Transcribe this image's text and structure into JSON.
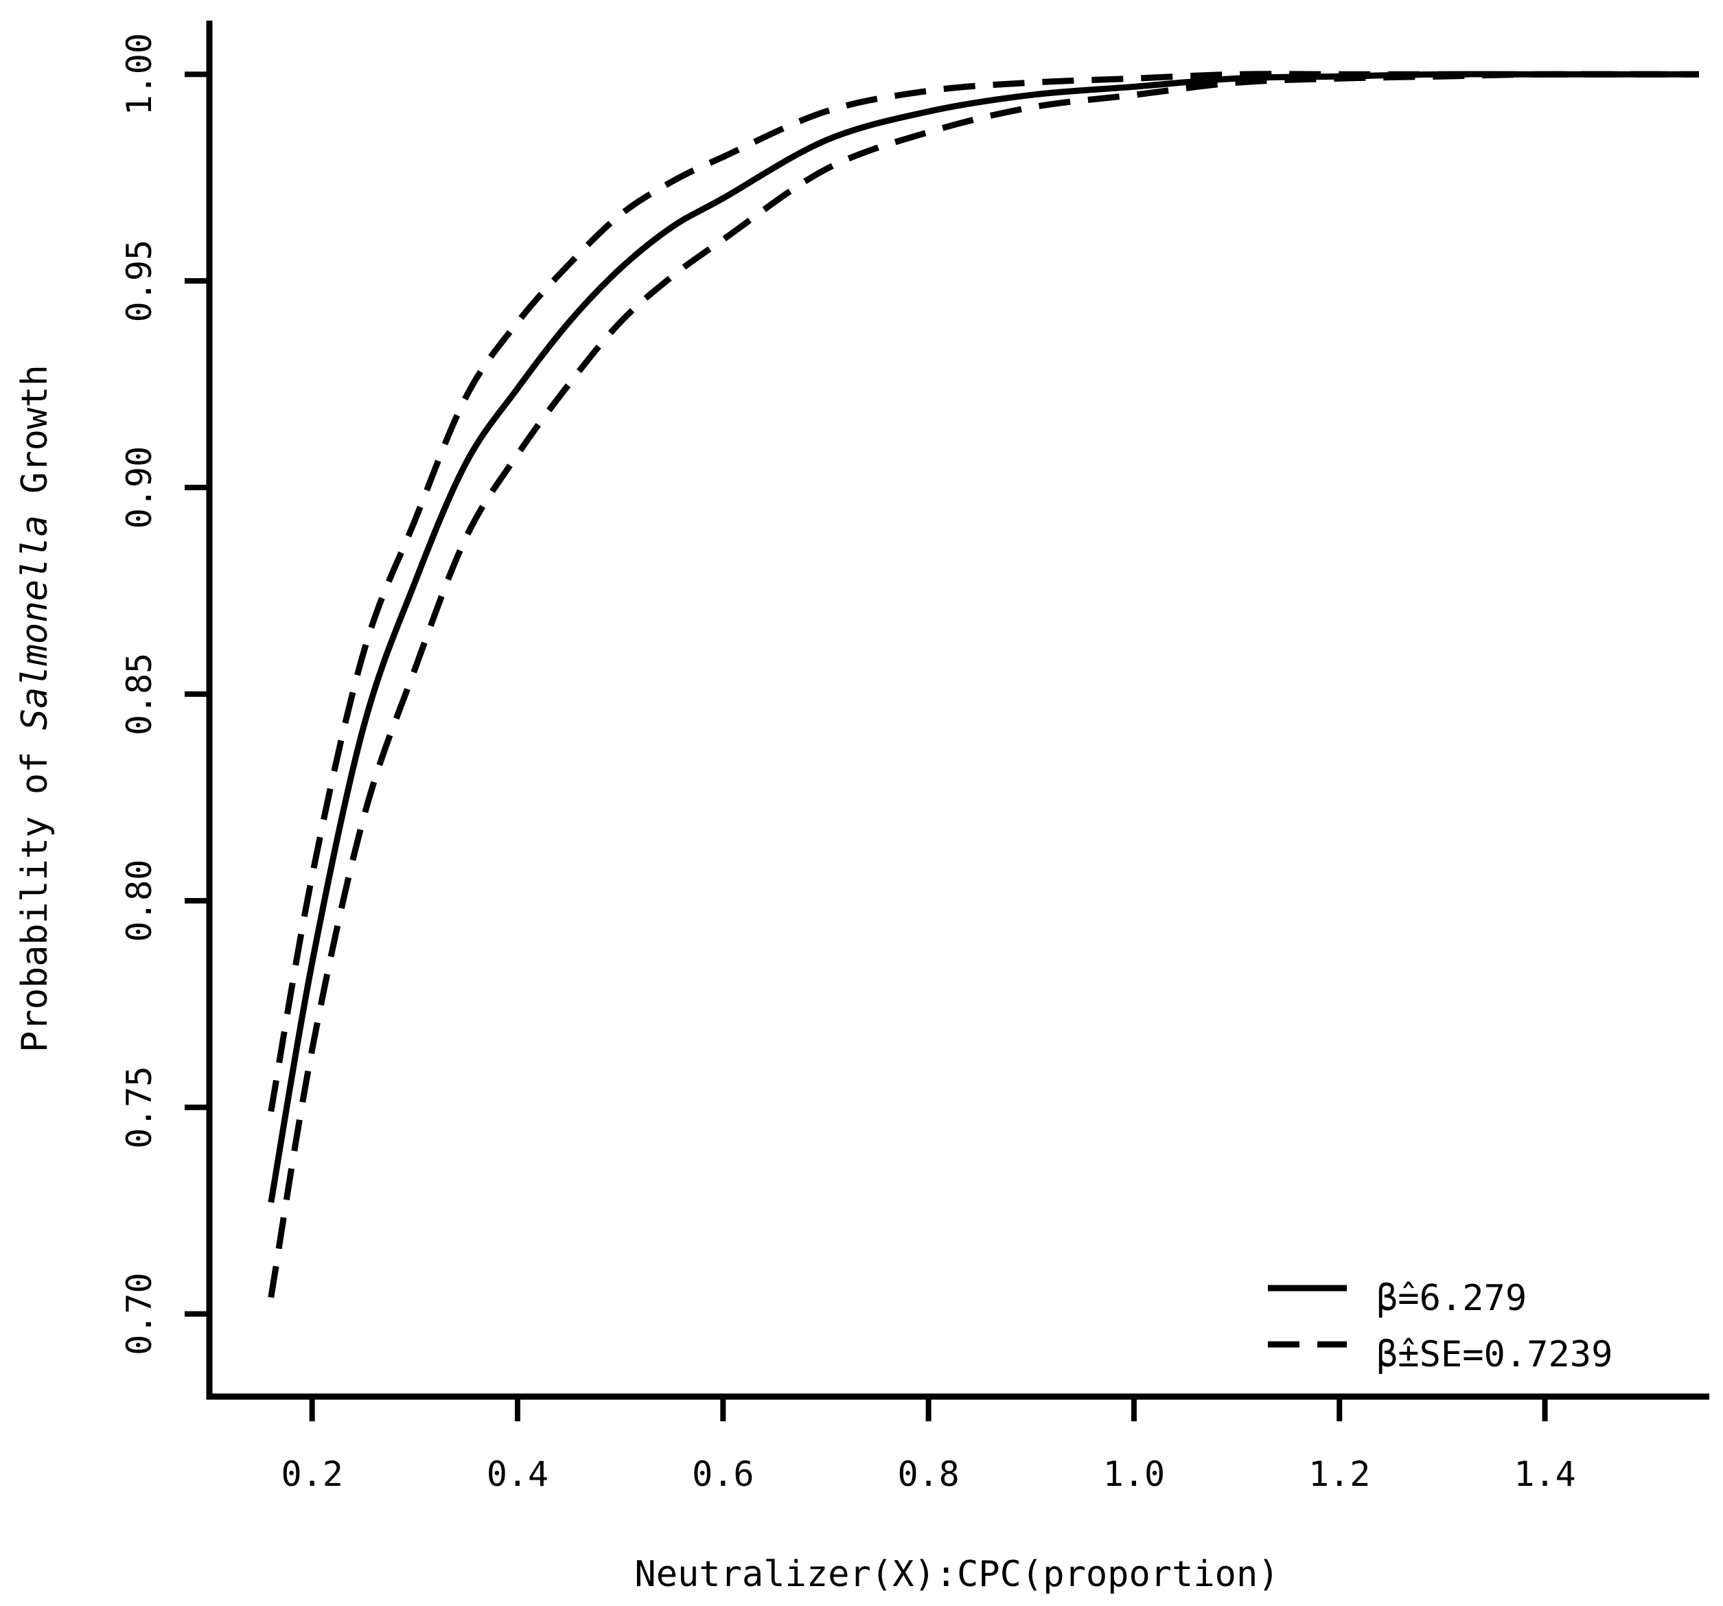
{
  "chart_data": {
    "type": "line",
    "title": "",
    "xlabel": "Neutralizer(X):CPC(proportion)",
    "ylabel_parts": [
      "Probability of ",
      "Salmonella",
      " Growth"
    ],
    "xlim": [
      0.1,
      1.56
    ],
    "ylim": [
      0.68,
      1.013
    ],
    "xticks": [
      0.2,
      0.4,
      0.6,
      0.8,
      1.0,
      1.2,
      1.4
    ],
    "xtick_labels": [
      "0.2",
      "0.4",
      "0.6",
      "0.8",
      "1.0",
      "1.2",
      "1.4"
    ],
    "yticks": [
      0.7,
      0.75,
      0.8,
      0.85,
      0.9,
      0.95,
      1.0
    ],
    "ytick_labels": [
      "0.70",
      "0.75",
      "0.80",
      "0.85",
      "0.90",
      "0.95",
      "1.00"
    ],
    "grid": false,
    "legend_position": "bottom-right",
    "series": [
      {
        "style": "solid",
        "x": [
          0.16,
          0.2,
          0.25,
          0.3,
          0.35,
          0.4,
          0.45,
          0.5,
          0.55,
          0.6,
          0.7,
          0.8,
          0.9,
          1.0,
          1.1,
          1.2,
          1.3,
          1.4,
          1.55
        ],
        "y": [
          0.727,
          0.785,
          0.842,
          0.877,
          0.906,
          0.924,
          0.94,
          0.953,
          0.963,
          0.97,
          0.984,
          0.991,
          0.995,
          0.997,
          0.999,
          0.9995,
          1.0,
          1.0,
          1.0
        ]
      },
      {
        "style": "dashed",
        "x": [
          0.16,
          0.2,
          0.25,
          0.3,
          0.35,
          0.4,
          0.45,
          0.5,
          0.55,
          0.6,
          0.7,
          0.8,
          0.9,
          1.0,
          1.1,
          1.2,
          1.3,
          1.4,
          1.55
        ],
        "y": [
          0.749,
          0.806,
          0.86,
          0.892,
          0.922,
          0.94,
          0.954,
          0.966,
          0.974,
          0.98,
          0.991,
          0.996,
          0.998,
          0.999,
          1.0,
          1.0,
          1.0,
          1.0,
          1.0
        ]
      },
      {
        "style": "dashed",
        "x": [
          0.16,
          0.2,
          0.25,
          0.3,
          0.35,
          0.4,
          0.45,
          0.5,
          0.55,
          0.6,
          0.7,
          0.8,
          0.9,
          1.0,
          1.1,
          1.2,
          1.3,
          1.4,
          1.55
        ],
        "y": [
          0.704,
          0.764,
          0.82,
          0.856,
          0.888,
          0.908,
          0.925,
          0.94,
          0.951,
          0.96,
          0.977,
          0.986,
          0.992,
          0.995,
          0.998,
          0.999,
          0.9995,
          1.0,
          1.0
        ]
      }
    ],
    "legend": [
      {
        "style": "solid",
        "label": "β̂=6.279"
      },
      {
        "style": "dashed",
        "label": "β̂±SE=0.7239"
      }
    ]
  }
}
